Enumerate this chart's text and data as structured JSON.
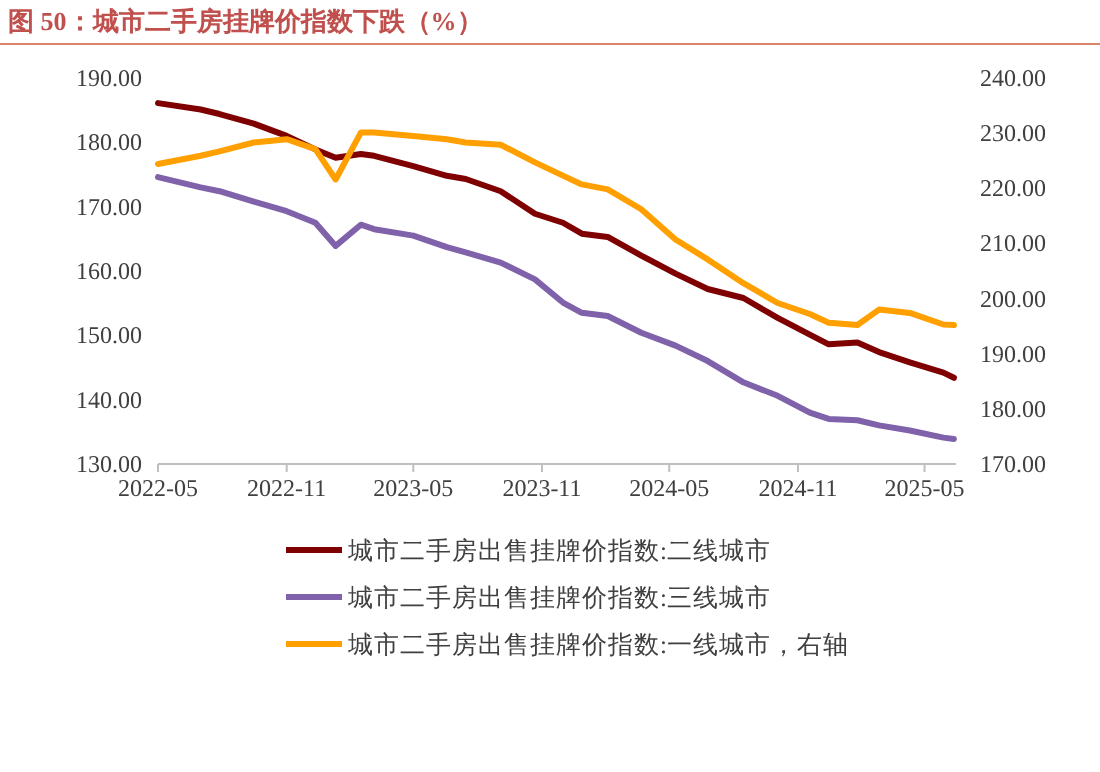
{
  "chart_data": {
    "type": "line",
    "title": "图 50：城市二手房挂牌价指数下跌（%）",
    "x": [
      "2022-05-01",
      "2022-07-01",
      "2022-07-28",
      "2022-09-15",
      "2022-11-01",
      "2022-12-12",
      "2023-01-10",
      "2023-02-15",
      "2023-03-06",
      "2023-05-01",
      "2023-06-18",
      "2023-07-15",
      "2023-09-03",
      "2023-10-22",
      "2023-12-01",
      "2023-12-28",
      "2024-02-03",
      "2024-03-22",
      "2024-05-10",
      "2024-06-25",
      "2024-08-15",
      "2024-10-03",
      "2024-11-18",
      "2024-12-15",
      "2025-01-25",
      "2025-02-25",
      "2025-04-10",
      "2025-05-28",
      "2025-06-12"
    ],
    "series": [
      {
        "name": "城市二手房出售挂牌价指数:二线城市",
        "color": "#7f0000",
        "values": [
          186.1,
          185.1,
          184.4,
          182.9,
          181.0,
          178.9,
          177.6,
          178.2,
          177.9,
          176.3,
          174.8,
          174.3,
          172.4,
          168.9,
          167.5,
          165.8,
          165.3,
          162.4,
          159.6,
          157.2,
          155.8,
          152.7,
          150.1,
          148.6,
          148.9,
          147.4,
          145.8,
          144.2,
          143.4
        ]
      },
      {
        "name": "城市二手房出售挂牌价指数:三线城市",
        "color": "#7f62aa",
        "values": [
          174.6,
          173.0,
          172.4,
          170.8,
          169.3,
          167.5,
          163.9,
          167.2,
          166.5,
          165.5,
          163.7,
          162.9,
          161.3,
          158.7,
          155.1,
          153.5,
          153.0,
          150.4,
          148.4,
          146.0,
          142.7,
          140.6,
          138.0,
          137.0,
          136.8,
          136.0,
          135.2,
          134.1,
          133.9
        ]
      },
      {
        "name": "城市二手房出售挂牌价指数:一线城市，右轴",
        "color": "#ffa000",
        "axis": "y2",
        "values": [
          224.4,
          225.9,
          226.7,
          228.3,
          228.9,
          227.1,
          221.6,
          230.1,
          230.1,
          229.5,
          228.9,
          228.3,
          227.9,
          224.7,
          222.3,
          220.7,
          219.8,
          216.2,
          210.7,
          207.1,
          202.8,
          199.2,
          197.2,
          195.6,
          195.2,
          198.0,
          197.4,
          195.3,
          195.2
        ]
      }
    ],
    "xlim": [
      "2022-05-01",
      "2025-06-15"
    ],
    "xticks": [
      {
        "value": "2022-05-01",
        "label": "2022-05"
      },
      {
        "value": "2022-11-01",
        "label": "2022-11"
      },
      {
        "value": "2023-05-01",
        "label": "2023-05"
      },
      {
        "value": "2023-11-01",
        "label": "2023-11"
      },
      {
        "value": "2024-05-01",
        "label": "2024-05"
      },
      {
        "value": "2024-11-01",
        "label": "2024-11"
      },
      {
        "value": "2025-05-01",
        "label": "2025-05"
      }
    ],
    "ylim": [
      130,
      190
    ],
    "yticks": [
      {
        "value": 130,
        "label": "130.00"
      },
      {
        "value": 140,
        "label": "140.00"
      },
      {
        "value": 150,
        "label": "150.00"
      },
      {
        "value": 160,
        "label": "160.00"
      },
      {
        "value": 170,
        "label": "170.00"
      },
      {
        "value": 180,
        "label": "180.00"
      },
      {
        "value": 190,
        "label": "190.00"
      }
    ],
    "y2lim": [
      170,
      240
    ],
    "y2ticks": [
      {
        "value": 170,
        "label": "170.00"
      },
      {
        "value": 180,
        "label": "180.00"
      },
      {
        "value": 190,
        "label": "190.00"
      },
      {
        "value": 200,
        "label": "200.00"
      },
      {
        "value": 210,
        "label": "210.00"
      },
      {
        "value": 220,
        "label": "220.00"
      },
      {
        "value": 230,
        "label": "230.00"
      },
      {
        "value": 240,
        "label": "240.00"
      }
    ],
    "grid": false,
    "legend": "bottom",
    "line_style": "solid"
  }
}
